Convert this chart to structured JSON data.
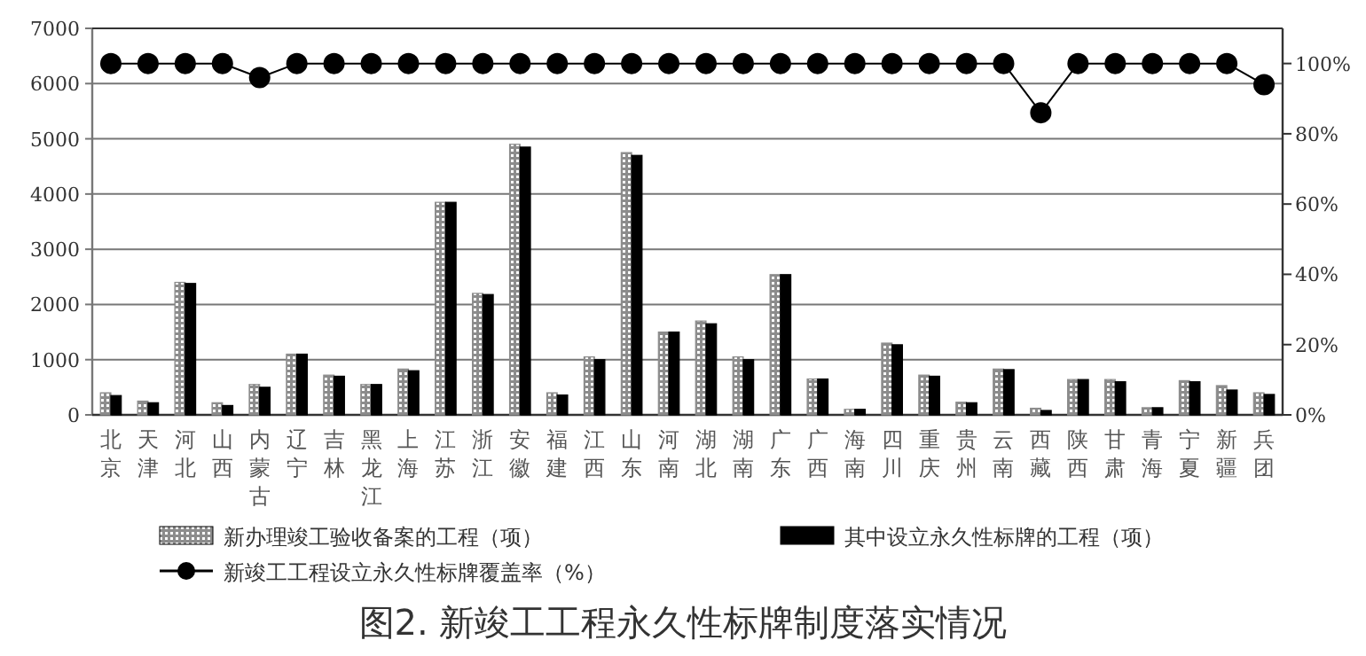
{
  "chart_data": {
    "type": "bar",
    "title": "图2. 新竣工工程永久性标牌制度落实情况",
    "categories": [
      "北京",
      "天津",
      "河北",
      "山西",
      "内蒙古",
      "辽宁",
      "吉林",
      "黑龙江",
      "上海",
      "江苏",
      "浙江",
      "安徽",
      "福建",
      "江西",
      "山东",
      "河南",
      "湖北",
      "湖南",
      "广东",
      "广西",
      "海南",
      "四川",
      "重庆",
      "贵州",
      "云南",
      "西藏",
      "陕西",
      "甘肃",
      "青海",
      "宁夏",
      "新疆",
      "兵团"
    ],
    "series": [
      {
        "name": "新办理竣工验收备案的工程（项）",
        "color": "#8c8c8c",
        "values": [
          400,
          250,
          2400,
          220,
          550,
          1100,
          720,
          550,
          830,
          3850,
          2200,
          4900,
          400,
          1050,
          4750,
          1500,
          1700,
          1050,
          2540,
          650,
          100,
          1300,
          720,
          230,
          830,
          120,
          640,
          640,
          130,
          620,
          530,
          400
        ]
      },
      {
        "name": "其中设立永久性标牌的工程（项）",
        "color": "#000000",
        "values": [
          350,
          220,
          2380,
          170,
          500,
          1100,
          700,
          550,
          800,
          3850,
          2180,
          4850,
          360,
          1000,
          4700,
          1500,
          1650,
          1000,
          2540,
          650,
          100,
          1270,
          700,
          220,
          820,
          80,
          640,
          600,
          130,
          600,
          450,
          370
        ]
      },
      {
        "name": "新竣工工程设立永久性标牌覆盖率（%）",
        "type": "line",
        "axis": "y2",
        "color": "#000000",
        "marker": "circle",
        "values": [
          100,
          100,
          100,
          100,
          96,
          100,
          100,
          100,
          100,
          100,
          100,
          100,
          100,
          100,
          100,
          100,
          100,
          100,
          100,
          100,
          100,
          100,
          100,
          100,
          100,
          86,
          100,
          100,
          100,
          100,
          100,
          94
        ]
      }
    ],
    "ylim": [
      0,
      7000
    ],
    "yticks": [
      0,
      1000,
      2000,
      3000,
      4000,
      5000,
      6000,
      7000
    ],
    "y2lim": [
      0,
      110
    ],
    "y2ticks": [
      {
        "value": 0,
        "label": "0%"
      },
      {
        "value": 20,
        "label": "20%"
      },
      {
        "value": 40,
        "label": "40%"
      },
      {
        "value": 60,
        "label": "60%"
      },
      {
        "value": 80,
        "label": "80%"
      },
      {
        "value": 100,
        "label": "100%"
      }
    ],
    "grid": "y",
    "legend": "bottom"
  }
}
